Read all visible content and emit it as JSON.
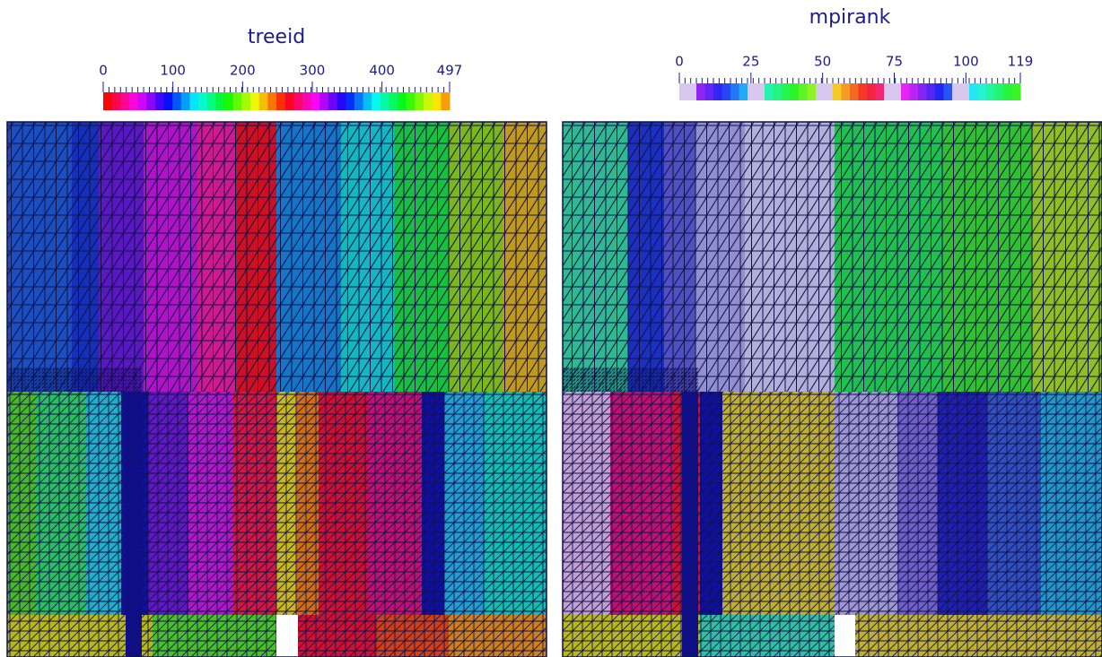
{
  "panels": [
    {
      "title": "treeid",
      "colorbar": {
        "lim": [
          0,
          497
        ],
        "ticks": [
          0,
          100,
          200,
          300,
          400,
          497
        ]
      }
    },
    {
      "title": "mpirank",
      "colorbar": {
        "lim": [
          0,
          119
        ],
        "ticks": [
          0,
          25,
          50,
          75,
          100,
          119
        ]
      }
    }
  ]
}
